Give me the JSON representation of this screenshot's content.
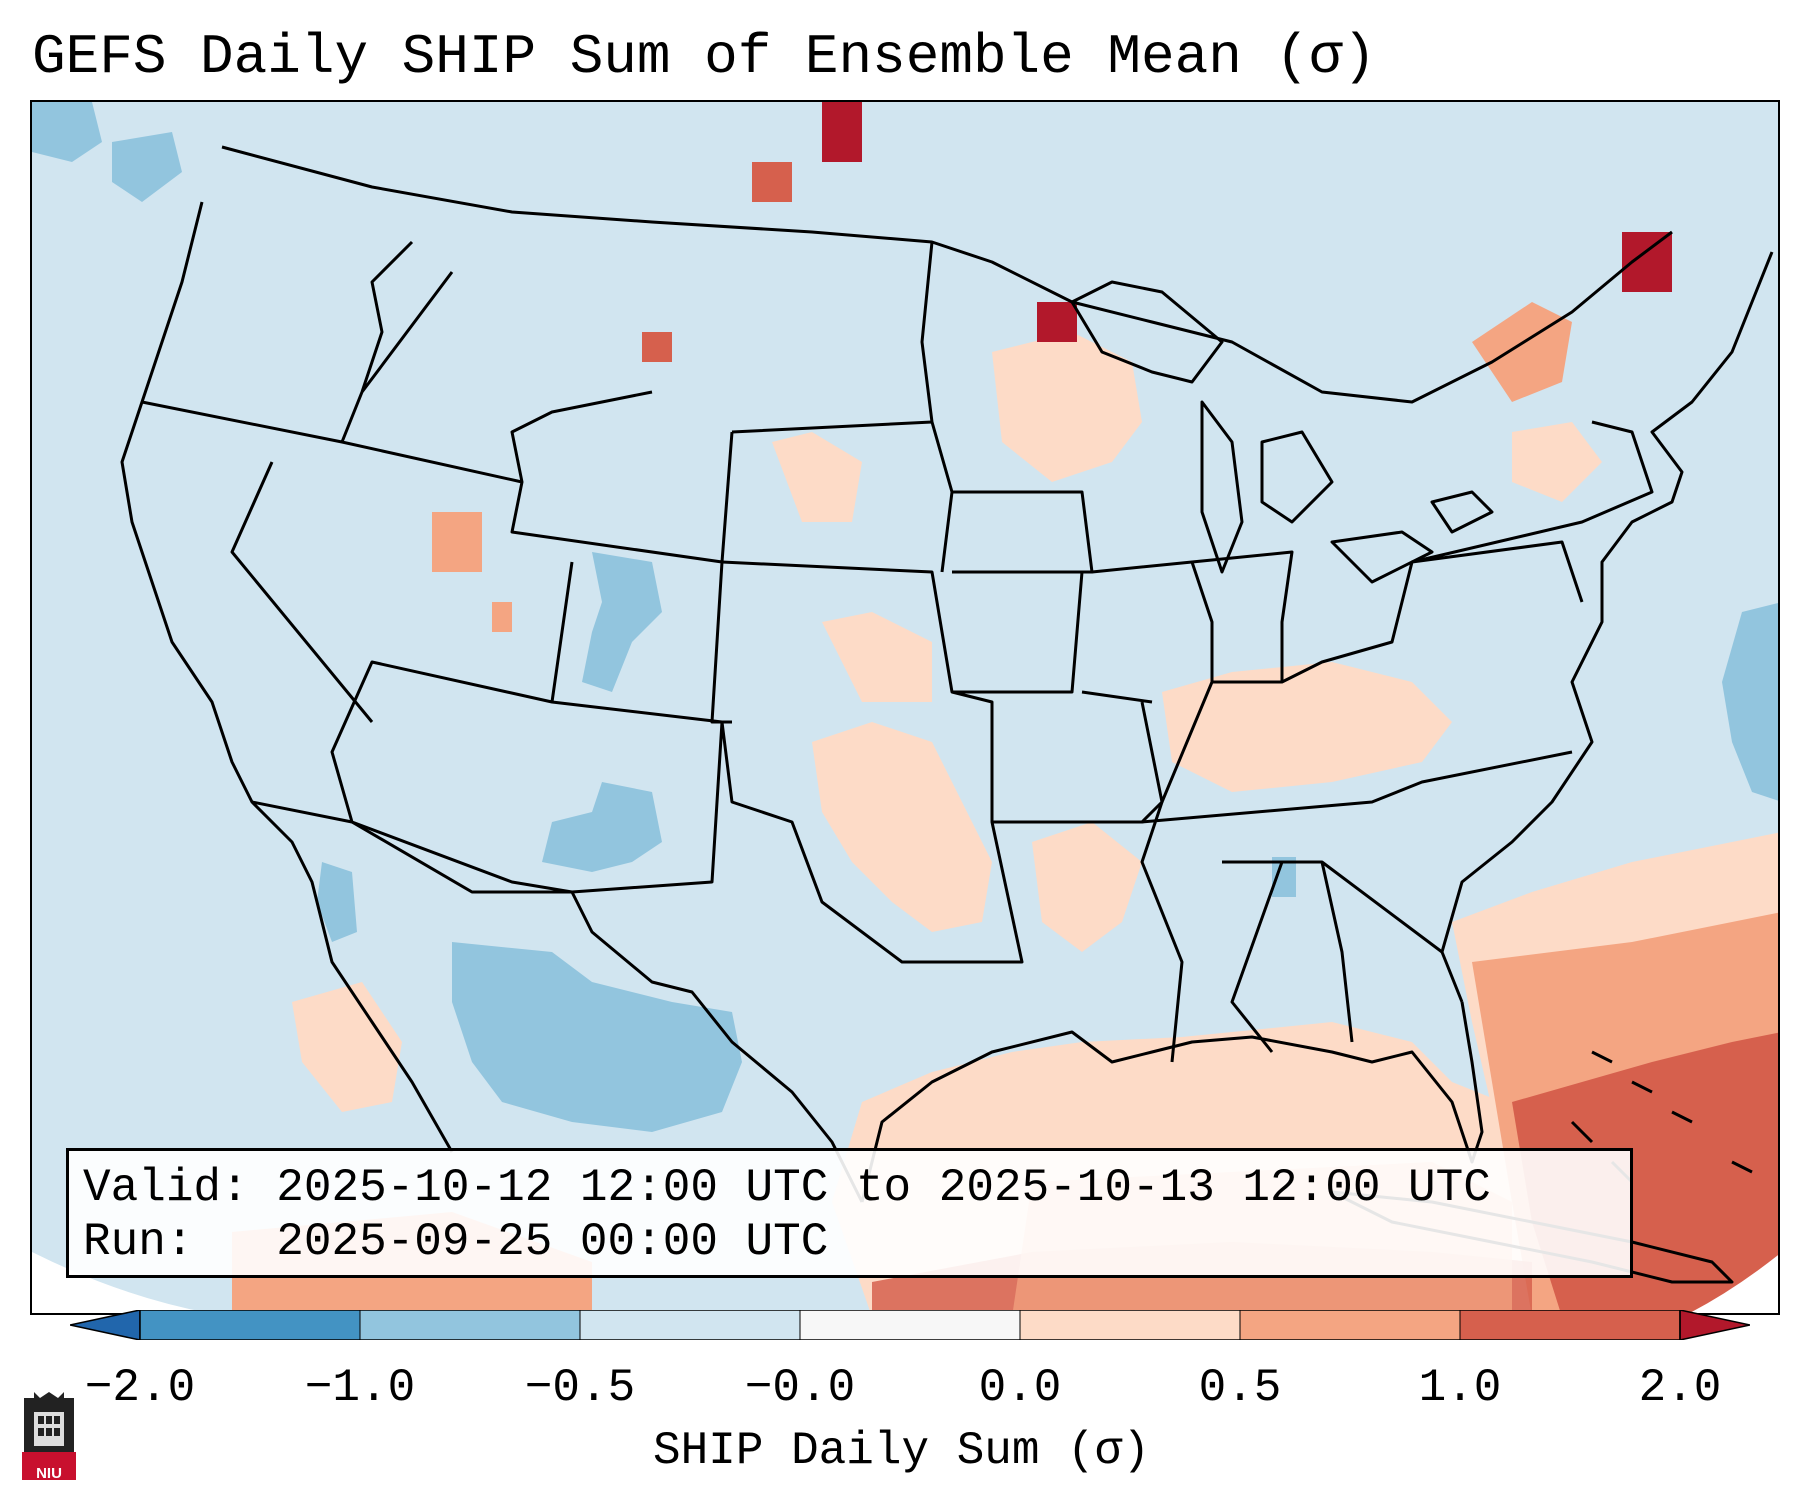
{
  "title": "GEFS Daily SHIP Sum of Ensemble Mean (σ)",
  "info": {
    "valid_label": "Valid:",
    "valid_value": "2025-10-12 12:00 UTC to 2025-10-13 12:00 UTC",
    "run_label": "Run:",
    "run_value": "2025-09-25 00:00 UTC"
  },
  "colorbar": {
    "label": "SHIP Daily Sum (σ)",
    "ticks": [
      "−2.0",
      "−1.0",
      "−0.5",
      "−0.0",
      "0.0",
      "0.5",
      "1.0",
      "2.0"
    ],
    "colors": [
      "#4393c3",
      "#92c5de",
      "#d1e5f0",
      "#f7f7f7",
      "#fddbc7",
      "#f4a582",
      "#d6604d"
    ],
    "under_color": "#2166ac",
    "over_color": "#b2182b"
  },
  "logo": {
    "text": "NIU"
  },
  "colors": {
    "map_background": "#d1e5f0",
    "border_lines": "#000000"
  }
}
